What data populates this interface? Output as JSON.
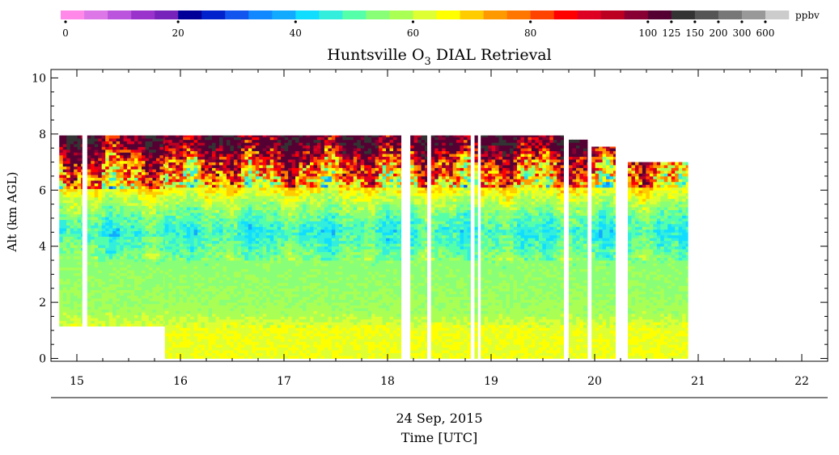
{
  "chart_data": {
    "type": "heatmap",
    "title": "Huntsville O",
    "title_subscript": "3",
    "title_suffix": " DIAL Retrieval",
    "ylabel": "Alt (km AGL)",
    "xlabel_line1": "24 Sep, 2015",
    "xlabel_line2": "Time [UTC]",
    "xlim": [
      14.75,
      22.25
    ],
    "ylim": [
      -0.1,
      10.3
    ],
    "x_ticks": [
      "15",
      "16",
      "17",
      "18",
      "19",
      "20",
      "21",
      "22"
    ],
    "y_ticks": [
      "0",
      "2",
      "4",
      "6",
      "8",
      "10"
    ],
    "colorbar": {
      "unit": "ppbv",
      "tick_labels": [
        "0",
        "20",
        "40",
        "60",
        "80",
        "100",
        "125",
        "150",
        "200",
        "300",
        "600"
      ],
      "bin_edges": [
        0,
        4,
        8,
        12,
        16,
        20,
        24,
        28,
        32,
        36,
        40,
        44,
        48,
        52,
        56,
        60,
        64,
        68,
        72,
        76,
        80,
        84,
        88,
        92,
        96,
        100,
        125,
        150,
        200,
        300,
        600
      ],
      "colors": [
        "#ff88e8",
        "#dd77e8",
        "#bb55dd",
        "#9933cc",
        "#7722bb",
        "#000099",
        "#0022cc",
        "#1155ee",
        "#1188ff",
        "#11aaff",
        "#11ddff",
        "#33eedd",
        "#55ffaa",
        "#88ff77",
        "#aaff55",
        "#ddff33",
        "#ffff00",
        "#ffcc00",
        "#ff9900",
        "#ff7700",
        "#ff4400",
        "#ff0000",
        "#dd0022",
        "#bb0022",
        "#880033",
        "#550033",
        "#333333",
        "#555555",
        "#777777",
        "#999999",
        "#cccccc"
      ]
    },
    "profiles": [
      {
        "start": 14.83,
        "end": 15.05,
        "base": 1.15,
        "top": 7.95
      },
      {
        "start": 15.1,
        "end": 15.85,
        "base": 1.15,
        "top": 7.95
      },
      {
        "start": 15.85,
        "end": 18.13,
        "base": 0.0,
        "top": 7.95
      },
      {
        "start": 18.22,
        "end": 18.38,
        "base": 0.0,
        "top": 7.95
      },
      {
        "start": 18.42,
        "end": 18.8,
        "base": 0.0,
        "top": 7.95
      },
      {
        "start": 18.84,
        "end": 18.87,
        "base": 0.0,
        "top": 7.95
      },
      {
        "start": 18.9,
        "end": 19.7,
        "base": 0.0,
        "top": 7.95
      },
      {
        "start": 19.75,
        "end": 19.93,
        "base": 0.0,
        "top": 7.8
      },
      {
        "start": 19.97,
        "end": 20.2,
        "base": 0.0,
        "top": 7.55
      },
      {
        "start": 20.32,
        "end": 20.9,
        "base": 0.0,
        "top": 7.0
      }
    ],
    "ozone_profile": [
      {
        "alt": 0.0,
        "ppbv": 64,
        "note": "surface layer, orange"
      },
      {
        "alt": 1.0,
        "ppbv": 64
      },
      {
        "alt": 1.5,
        "ppbv": 58,
        "note": "yellow-green"
      },
      {
        "alt": 2.2,
        "ppbv": 56
      },
      {
        "alt": 3.5,
        "ppbv": 54,
        "note": "lime"
      },
      {
        "alt": 4.5,
        "ppbv": 46,
        "note": "cyan-green mid troposphere"
      },
      {
        "alt": 5.5,
        "ppbv": 58
      },
      {
        "alt": 6.2,
        "ppbv": 70,
        "note": "orange-red"
      },
      {
        "alt": 7.0,
        "ppbv": 86,
        "note": "red"
      },
      {
        "alt": 7.6,
        "ppbv": 110,
        "note": "dark red/grey cap"
      }
    ],
    "grid": false,
    "legend": "colorbar-top"
  }
}
